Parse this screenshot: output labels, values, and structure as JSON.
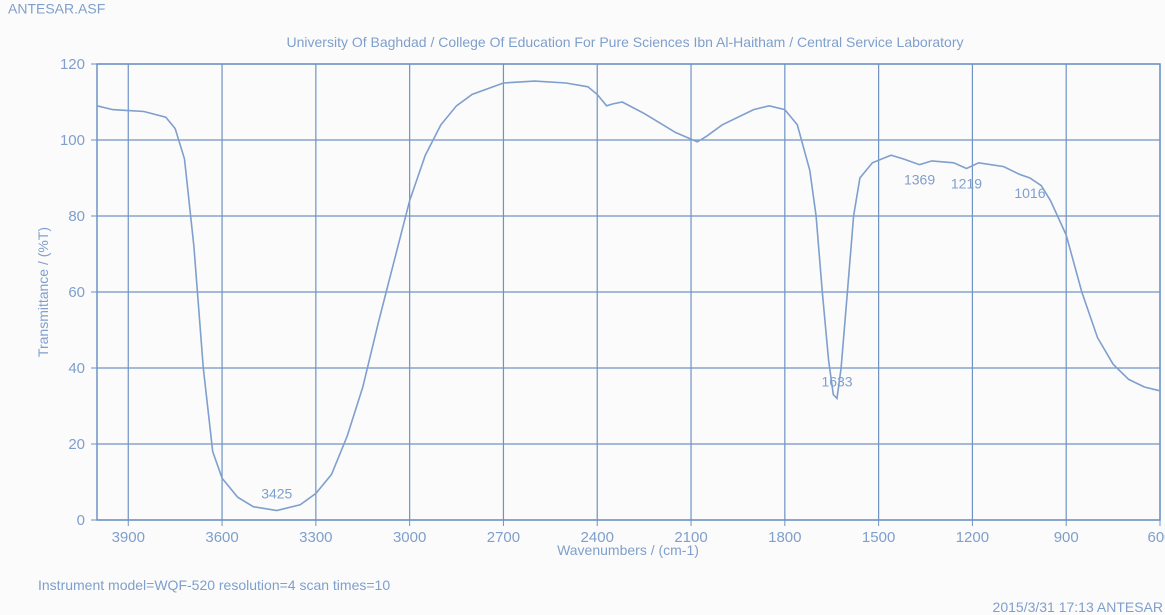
{
  "chart_data": {
    "type": "line",
    "title": "University Of Baghdad / College Of Education For Pure Sciences Ibn Al-Haitham / Central Service Laboratory",
    "x_label": "Wavenumbers / (cm-1)",
    "y_label": "Transmittance / (%T)",
    "footer_left": "Instrument model=WQF-520 resolution=4 scan times=10",
    "footer_right": "2015/3/31 17:13 ANTESAR",
    "xlim": [
      4000,
      600
    ],
    "ylim": [
      0,
      120
    ],
    "xticks": [
      3900,
      3600,
      3300,
      3000,
      2700,
      2400,
      2100,
      1800,
      1500,
      1200,
      900,
      600
    ],
    "yticks": [
      0,
      20,
      40,
      60,
      80,
      100,
      120
    ],
    "grid": true,
    "peak_labels": [
      3425,
      1633,
      1369,
      1219,
      1016
    ],
    "series": [
      {
        "name": "ANTESAR.ASF",
        "color": "#7f9fcc",
        "x": [
          4000,
          3950,
          3850,
          3780,
          3750,
          3720,
          3690,
          3660,
          3630,
          3600,
          3550,
          3500,
          3425,
          3350,
          3300,
          3250,
          3200,
          3150,
          3100,
          3050,
          3000,
          2950,
          2900,
          2850,
          2800,
          2700,
          2600,
          2500,
          2430,
          2400,
          2370,
          2350,
          2320,
          2250,
          2150,
          2080,
          2050,
          2000,
          1900,
          1850,
          1800,
          1760,
          1720,
          1700,
          1680,
          1660,
          1645,
          1633,
          1620,
          1600,
          1580,
          1560,
          1520,
          1460,
          1420,
          1369,
          1330,
          1260,
          1219,
          1180,
          1100,
          1050,
          1016,
          980,
          950,
          900,
          850,
          800,
          750,
          700,
          650,
          600
        ],
        "values": [
          109,
          108,
          107.5,
          106,
          103,
          95,
          72,
          40,
          18,
          11,
          6,
          3.5,
          2.5,
          4,
          7,
          12,
          22,
          35,
          52,
          68,
          84,
          96,
          104,
          109,
          112,
          115,
          115.5,
          115,
          114,
          112,
          109,
          109.5,
          110,
          107,
          102,
          99.5,
          101,
          104,
          108,
          109,
          108,
          104,
          92,
          80,
          60,
          42,
          33,
          32,
          40,
          60,
          80,
          90,
          94,
          96,
          95,
          93.5,
          94.5,
          94,
          92.5,
          94,
          93,
          91,
          90,
          88,
          84,
          75,
          60,
          48,
          41,
          37,
          35,
          34
        ]
      }
    ]
  }
}
